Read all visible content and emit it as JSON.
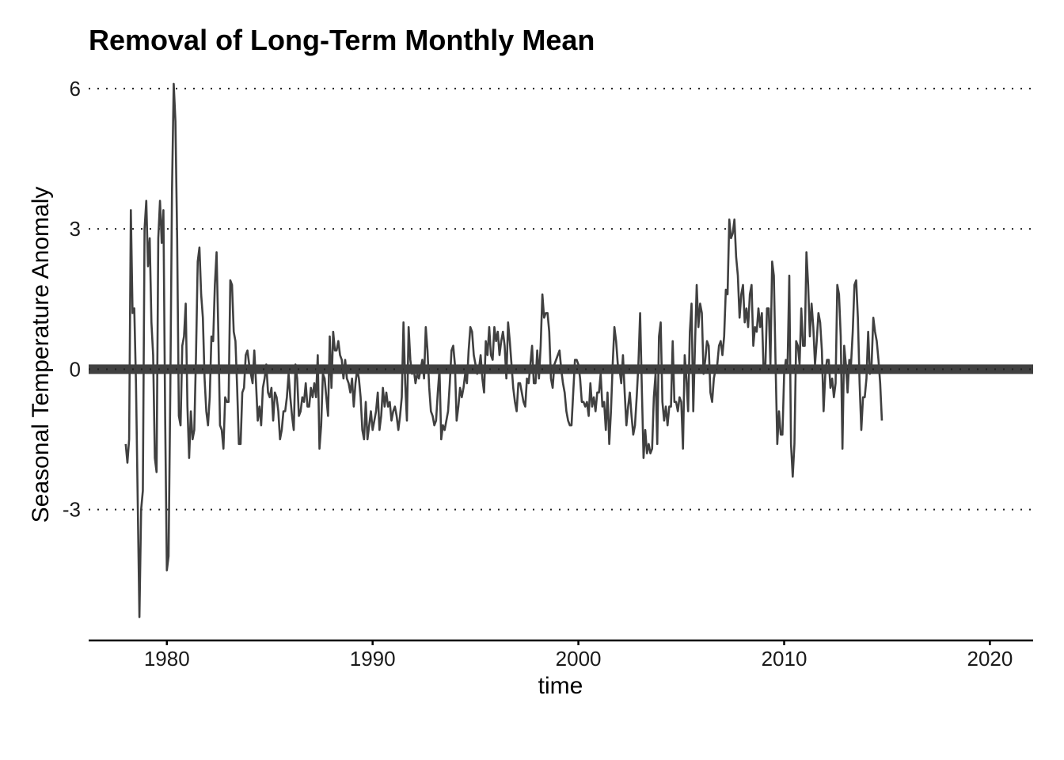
{
  "chart_data": {
    "type": "line",
    "title": "Removal of Long-Term Monthly Mean",
    "xlabel": "time",
    "ylabel": "Seasonal Temperature Anomaly",
    "xlim": [
      1976.2,
      2022.1
    ],
    "ylim": [
      -5.8,
      6.2
    ],
    "x_ticks": [
      1980,
      1990,
      2000,
      2010,
      2020
    ],
    "y_ticks": [
      -3,
      0,
      3,
      6
    ],
    "y_tick_labels": [
      "-3",
      "0",
      "3",
      "6"
    ],
    "grid": "horizontal dotted at y ticks",
    "reference_line": {
      "y": 0,
      "color": "#404040"
    },
    "series": [
      {
        "color": "#404040",
        "x_start": 1978.0,
        "x_step": 0.0833333,
        "values": [
          -1.6,
          -2.0,
          -1.5,
          3.4,
          1.2,
          1.3,
          -0.3,
          -2.8,
          -5.3,
          -3.0,
          -2.6,
          3.0,
          3.6,
          2.2,
          2.8,
          1.0,
          0.3,
          -1.9,
          -2.2,
          2.8,
          3.6,
          2.7,
          3.4,
          -1.0,
          -4.3,
          -4.0,
          -0.5,
          3.8,
          6.1,
          5.3,
          2.8,
          -1.0,
          -1.2,
          0.5,
          0.7,
          1.4,
          -0.8,
          -1.9,
          -0.9,
          -1.5,
          -1.3,
          0.3,
          2.3,
          2.6,
          1.6,
          1.1,
          -0.2,
          -0.9,
          -1.2,
          -0.6,
          0.7,
          0.6,
          1.8,
          2.5,
          0.8,
          -1.2,
          -1.3,
          -1.7,
          -0.6,
          -0.7,
          -0.7,
          1.9,
          1.8,
          0.8,
          0.6,
          -0.4,
          -1.6,
          -1.6,
          -0.5,
          -0.4,
          0.3,
          0.4,
          0.1,
          -0.1,
          -0.3,
          0.4,
          -0.3,
          -1.1,
          -0.8,
          -1.2,
          -0.4,
          -0.2,
          0.1,
          -0.5,
          -0.6,
          -0.4,
          -1.1,
          -0.5,
          -0.6,
          -0.9,
          -1.5,
          -1.3,
          -0.9,
          -0.9,
          -0.6,
          -0.1,
          -0.6,
          -1.0,
          -1.3,
          0.1,
          -0.2,
          -1.0,
          -0.9,
          -0.6,
          -0.7,
          -0.3,
          -0.8,
          -0.8,
          -0.4,
          -0.6,
          -0.3,
          -0.6,
          0.3,
          -1.7,
          -1.2,
          -0.1,
          -0.2,
          -0.6,
          -1.0,
          0.7,
          -0.4,
          0.8,
          0.4,
          0.4,
          0.6,
          0.3,
          0.2,
          -0.2,
          0.2,
          -0.2,
          -0.3,
          -0.5,
          -0.2,
          -0.8,
          -0.3,
          0.0,
          -0.2,
          -0.6,
          -1.3,
          -1.5,
          -0.7,
          -1.5,
          -1.2,
          -0.9,
          -1.3,
          -1.1,
          -0.9,
          -0.5,
          -1.3,
          -1.0,
          -0.4,
          -0.8,
          -0.5,
          -0.8,
          -0.7,
          -1.1,
          -0.9,
          -0.8,
          -1.0,
          -1.3,
          -1.0,
          -0.6,
          1.0,
          -0.3,
          -1.1,
          0.9,
          0.2,
          -0.1,
          0.0,
          -0.3,
          -0.1,
          -0.2,
          0.0,
          0.2,
          -0.2,
          0.9,
          0.4,
          -0.4,
          -0.9,
          -1.0,
          -1.2,
          -1.1,
          -0.5,
          0.0,
          -1.5,
          -1.2,
          -1.3,
          -1.1,
          -0.9,
          -0.3,
          0.4,
          0.5,
          0.1,
          -1.1,
          -0.8,
          -0.4,
          -0.6,
          -0.4,
          -0.1,
          -0.3,
          0.4,
          0.9,
          0.8,
          0.3,
          0.1,
          -0.1,
          0.0,
          0.3,
          -0.2,
          -0.5,
          0.6,
          0.3,
          0.9,
          0.3,
          0.2,
          0.9,
          0.6,
          0.8,
          0.3,
          0.6,
          0.8,
          0.5,
          -0.2,
          1.0,
          0.6,
          0.1,
          -0.4,
          -0.7,
          -0.9,
          -0.3,
          -0.3,
          -0.5,
          -0.7,
          -0.8,
          -0.2,
          -0.3,
          0.1,
          0.5,
          -0.3,
          -0.3,
          0.4,
          -0.2,
          0.5,
          1.6,
          1.1,
          1.2,
          1.2,
          0.8,
          -0.2,
          -0.4,
          0.1,
          0.2,
          0.3,
          0.4,
          0.0,
          -0.3,
          -0.5,
          -0.9,
          -1.1,
          -1.2,
          -1.2,
          -0.5,
          0.2,
          0.2,
          0.1,
          -0.2,
          -0.7,
          -0.7,
          -0.8,
          -0.7,
          -1.0,
          -0.3,
          -0.8,
          -0.6,
          -0.9,
          -0.5,
          -0.5,
          -0.1,
          -0.8,
          -0.7,
          -1.3,
          -0.5,
          -1.6,
          -0.9,
          0.1,
          0.9,
          0.6,
          0.1,
          0.0,
          -0.3,
          0.3,
          -0.5,
          -1.2,
          -0.8,
          -0.5,
          -1.0,
          -1.4,
          -1.2,
          -0.6,
          0.1,
          1.2,
          -0.4,
          -1.9,
          -1.3,
          -1.8,
          -1.6,
          -1.8,
          -1.7,
          -0.6,
          -0.1,
          -1.6,
          0.7,
          1.0,
          -0.7,
          -1.1,
          -0.8,
          -1.2,
          -0.8,
          -0.8,
          0.6,
          -0.7,
          -0.7,
          -0.9,
          -0.6,
          -0.7,
          -1.7,
          0.3,
          -0.2,
          -0.9,
          0.8,
          1.4,
          -0.9,
          0.5,
          1.8,
          0.9,
          1.4,
          1.2,
          -0.1,
          0.2,
          0.6,
          0.5,
          -0.5,
          -0.7,
          -0.2,
          0.0,
          0.1,
          0.5,
          0.6,
          0.3,
          0.7,
          1.7,
          1.6,
          3.2,
          2.8,
          2.9,
          3.2,
          2.4,
          2.0,
          1.1,
          1.6,
          1.8,
          1.0,
          1.3,
          0.9,
          1.6,
          1.8,
          0.5,
          0.9,
          0.8,
          1.3,
          0.9,
          1.2,
          0.0,
          0.0,
          1.3,
          1.3,
          0.1,
          2.3,
          2.0,
          0.1,
          -1.6,
          -0.9,
          -1.4,
          -1.4,
          -0.1,
          0.2,
          0.1,
          2.0,
          -1.6,
          -2.3,
          -1.6,
          0.6,
          0.5,
          0.1,
          1.3,
          0.5,
          0.5,
          2.5,
          1.8,
          0.7,
          1.4,
          0.9,
          0.1,
          0.6,
          1.2,
          1.0,
          0.4,
          -0.9,
          -0.1,
          0.2,
          0.2,
          -0.4,
          -0.2,
          -0.6,
          -0.3,
          1.8,
          1.6,
          0.7,
          -1.7,
          0.5,
          0.1,
          -0.5,
          0.2,
          0.1,
          0.8,
          1.8,
          1.9,
          1.1,
          -0.3,
          -1.3,
          -0.6,
          -0.6,
          -0.2,
          0.8,
          -0.1,
          0.1,
          1.1,
          0.8,
          0.6,
          0.2,
          -0.3,
          -1.1
        ]
      }
    ]
  }
}
